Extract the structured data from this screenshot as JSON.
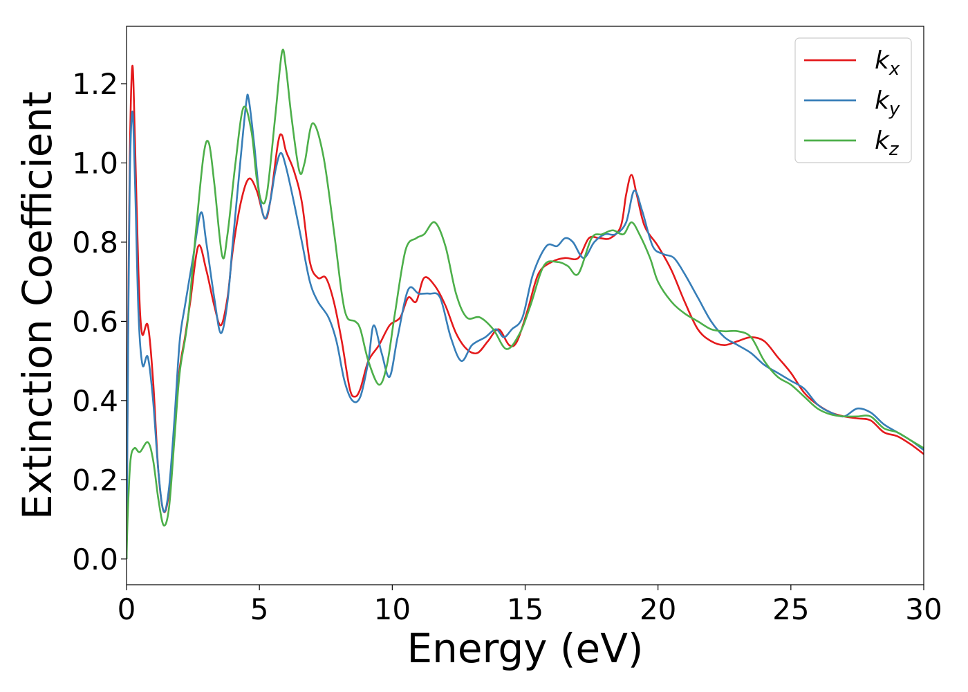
{
  "chart_data": {
    "type": "line",
    "title": "",
    "xlabel": "Energy (eV)",
    "ylabel": "Extinction Coefficient",
    "xlim": [
      0,
      30
    ],
    "ylim": [
      -0.065,
      1.345
    ],
    "xticks": [
      0,
      5,
      10,
      15,
      20,
      25,
      30
    ],
    "xtick_labels": [
      "0",
      "5",
      "10",
      "15",
      "20",
      "25",
      "30"
    ],
    "yticks": [
      0.0,
      0.2,
      0.4,
      0.6,
      0.8,
      1.0,
      1.2
    ],
    "ytick_labels": [
      "0.0",
      "0.2",
      "0.4",
      "0.6",
      "0.8",
      "1.0",
      "1.2"
    ],
    "grid": false,
    "legend_position": "top-right",
    "series": [
      {
        "name": "k",
        "subscript": "x",
        "color": "#e41a1c",
        "points": [
          [
            0,
            0
          ],
          [
            0.05,
            0.5
          ],
          [
            0.12,
            1.0
          ],
          [
            0.22,
            1.245
          ],
          [
            0.32,
            1.05
          ],
          [
            0.45,
            0.72
          ],
          [
            0.58,
            0.57
          ],
          [
            0.8,
            0.59
          ],
          [
            1.0,
            0.45
          ],
          [
            1.2,
            0.22
          ],
          [
            1.4,
            0.12
          ],
          [
            1.6,
            0.17
          ],
          [
            1.8,
            0.33
          ],
          [
            2.0,
            0.48
          ],
          [
            2.2,
            0.56
          ],
          [
            2.4,
            0.65
          ],
          [
            2.7,
            0.79
          ],
          [
            3.0,
            0.73
          ],
          [
            3.3,
            0.64
          ],
          [
            3.55,
            0.59
          ],
          [
            3.8,
            0.66
          ],
          [
            4.0,
            0.78
          ],
          [
            4.3,
            0.9
          ],
          [
            4.6,
            0.96
          ],
          [
            4.9,
            0.93
          ],
          [
            5.2,
            0.86
          ],
          [
            5.4,
            0.9
          ],
          [
            5.7,
            1.05
          ],
          [
            5.85,
            1.07
          ],
          [
            6.0,
            1.03
          ],
          [
            6.3,
            0.98
          ],
          [
            6.6,
            0.9
          ],
          [
            6.9,
            0.75
          ],
          [
            7.2,
            0.71
          ],
          [
            7.5,
            0.71
          ],
          [
            7.8,
            0.65
          ],
          [
            8.1,
            0.55
          ],
          [
            8.4,
            0.43
          ],
          [
            8.6,
            0.41
          ],
          [
            8.8,
            0.43
          ],
          [
            9.1,
            0.5
          ],
          [
            9.5,
            0.54
          ],
          [
            9.9,
            0.59
          ],
          [
            10.3,
            0.61
          ],
          [
            10.6,
            0.66
          ],
          [
            10.9,
            0.65
          ],
          [
            11.2,
            0.71
          ],
          [
            11.6,
            0.69
          ],
          [
            12.0,
            0.64
          ],
          [
            12.4,
            0.57
          ],
          [
            12.8,
            0.53
          ],
          [
            13.2,
            0.52
          ],
          [
            13.6,
            0.55
          ],
          [
            14.0,
            0.58
          ],
          [
            14.4,
            0.54
          ],
          [
            14.7,
            0.55
          ],
          [
            15.1,
            0.63
          ],
          [
            15.5,
            0.72
          ],
          [
            16.0,
            0.75
          ],
          [
            16.5,
            0.76
          ],
          [
            17.0,
            0.76
          ],
          [
            17.4,
            0.81
          ],
          [
            17.8,
            0.81
          ],
          [
            18.2,
            0.81
          ],
          [
            18.6,
            0.84
          ],
          [
            18.8,
            0.92
          ],
          [
            19.0,
            0.97
          ],
          [
            19.2,
            0.92
          ],
          [
            19.5,
            0.84
          ],
          [
            20.0,
            0.79
          ],
          [
            20.5,
            0.73
          ],
          [
            21.0,
            0.65
          ],
          [
            21.5,
            0.58
          ],
          [
            22.0,
            0.55
          ],
          [
            22.5,
            0.54
          ],
          [
            23.0,
            0.55
          ],
          [
            23.5,
            0.56
          ],
          [
            24.0,
            0.55
          ],
          [
            24.5,
            0.51
          ],
          [
            25.0,
            0.47
          ],
          [
            25.5,
            0.42
          ],
          [
            26.0,
            0.39
          ],
          [
            26.5,
            0.37
          ],
          [
            27.0,
            0.36
          ],
          [
            27.5,
            0.355
          ],
          [
            28.0,
            0.35
          ],
          [
            28.5,
            0.32
          ],
          [
            29.0,
            0.31
          ],
          [
            29.5,
            0.29
          ],
          [
            30.0,
            0.265
          ]
        ]
      },
      {
        "name": "k",
        "subscript": "y",
        "color": "#377eb8",
        "points": [
          [
            0,
            0
          ],
          [
            0.05,
            0.45
          ],
          [
            0.12,
            0.95
          ],
          [
            0.22,
            1.13
          ],
          [
            0.32,
            0.95
          ],
          [
            0.45,
            0.62
          ],
          [
            0.6,
            0.49
          ],
          [
            0.8,
            0.51
          ],
          [
            1.0,
            0.4
          ],
          [
            1.2,
            0.22
          ],
          [
            1.4,
            0.12
          ],
          [
            1.6,
            0.18
          ],
          [
            1.8,
            0.35
          ],
          [
            2.0,
            0.55
          ],
          [
            2.2,
            0.64
          ],
          [
            2.5,
            0.76
          ],
          [
            2.8,
            0.875
          ],
          [
            3.0,
            0.8
          ],
          [
            3.3,
            0.66
          ],
          [
            3.55,
            0.57
          ],
          [
            3.8,
            0.65
          ],
          [
            4.0,
            0.8
          ],
          [
            4.25,
            0.98
          ],
          [
            4.5,
            1.15
          ],
          [
            4.6,
            1.16
          ],
          [
            4.8,
            1.05
          ],
          [
            5.0,
            0.92
          ],
          [
            5.2,
            0.86
          ],
          [
            5.4,
            0.9
          ],
          [
            5.6,
            0.98
          ],
          [
            5.8,
            1.025
          ],
          [
            6.0,
            0.99
          ],
          [
            6.3,
            0.9
          ],
          [
            6.6,
            0.8
          ],
          [
            6.9,
            0.7
          ],
          [
            7.2,
            0.65
          ],
          [
            7.6,
            0.61
          ],
          [
            7.9,
            0.55
          ],
          [
            8.2,
            0.45
          ],
          [
            8.5,
            0.4
          ],
          [
            8.8,
            0.41
          ],
          [
            9.1,
            0.5
          ],
          [
            9.3,
            0.59
          ],
          [
            9.6,
            0.52
          ],
          [
            9.9,
            0.46
          ],
          [
            10.2,
            0.56
          ],
          [
            10.6,
            0.68
          ],
          [
            11.0,
            0.67
          ],
          [
            11.4,
            0.67
          ],
          [
            11.8,
            0.66
          ],
          [
            12.2,
            0.56
          ],
          [
            12.6,
            0.5
          ],
          [
            13.0,
            0.54
          ],
          [
            13.5,
            0.56
          ],
          [
            13.9,
            0.58
          ],
          [
            14.2,
            0.56
          ],
          [
            14.5,
            0.58
          ],
          [
            14.9,
            0.61
          ],
          [
            15.3,
            0.72
          ],
          [
            15.8,
            0.79
          ],
          [
            16.2,
            0.79
          ],
          [
            16.5,
            0.81
          ],
          [
            16.8,
            0.8
          ],
          [
            17.2,
            0.76
          ],
          [
            17.6,
            0.8
          ],
          [
            18.0,
            0.82
          ],
          [
            18.4,
            0.82
          ],
          [
            18.8,
            0.85
          ],
          [
            19.1,
            0.93
          ],
          [
            19.4,
            0.88
          ],
          [
            19.8,
            0.79
          ],
          [
            20.2,
            0.77
          ],
          [
            20.6,
            0.76
          ],
          [
            21.0,
            0.72
          ],
          [
            21.5,
            0.66
          ],
          [
            22.0,
            0.6
          ],
          [
            22.5,
            0.56
          ],
          [
            23.0,
            0.54
          ],
          [
            23.5,
            0.52
          ],
          [
            24.0,
            0.49
          ],
          [
            24.5,
            0.47
          ],
          [
            25.0,
            0.45
          ],
          [
            25.5,
            0.43
          ],
          [
            26.0,
            0.39
          ],
          [
            26.5,
            0.37
          ],
          [
            27.0,
            0.36
          ],
          [
            27.5,
            0.38
          ],
          [
            28.0,
            0.37
          ],
          [
            28.5,
            0.34
          ],
          [
            29.0,
            0.32
          ],
          [
            29.5,
            0.3
          ],
          [
            30.0,
            0.275
          ]
        ]
      },
      {
        "name": "k",
        "subscript": "z",
        "color": "#4daf4a",
        "points": [
          [
            0,
            0
          ],
          [
            0.05,
            0.12
          ],
          [
            0.15,
            0.25
          ],
          [
            0.3,
            0.28
          ],
          [
            0.5,
            0.27
          ],
          [
            0.8,
            0.295
          ],
          [
            1.0,
            0.25
          ],
          [
            1.2,
            0.15
          ],
          [
            1.4,
            0.085
          ],
          [
            1.6,
            0.13
          ],
          [
            1.8,
            0.3
          ],
          [
            2.0,
            0.47
          ],
          [
            2.3,
            0.6
          ],
          [
            2.6,
            0.82
          ],
          [
            2.9,
            1.02
          ],
          [
            3.1,
            1.05
          ],
          [
            3.3,
            0.95
          ],
          [
            3.6,
            0.765
          ],
          [
            3.8,
            0.82
          ],
          [
            4.1,
            1.0
          ],
          [
            4.4,
            1.14
          ],
          [
            4.7,
            1.08
          ],
          [
            4.9,
            0.96
          ],
          [
            5.1,
            0.9
          ],
          [
            5.3,
            0.93
          ],
          [
            5.6,
            1.12
          ],
          [
            5.85,
            1.28
          ],
          [
            6.0,
            1.24
          ],
          [
            6.2,
            1.12
          ],
          [
            6.5,
            0.98
          ],
          [
            6.7,
            1.0
          ],
          [
            7.0,
            1.1
          ],
          [
            7.4,
            1.02
          ],
          [
            7.8,
            0.83
          ],
          [
            8.1,
            0.67
          ],
          [
            8.3,
            0.61
          ],
          [
            8.6,
            0.6
          ],
          [
            8.8,
            0.58
          ],
          [
            9.1,
            0.5
          ],
          [
            9.5,
            0.44
          ],
          [
            9.8,
            0.49
          ],
          [
            10.1,
            0.62
          ],
          [
            10.5,
            0.78
          ],
          [
            10.9,
            0.81
          ],
          [
            11.2,
            0.82
          ],
          [
            11.6,
            0.85
          ],
          [
            12.0,
            0.79
          ],
          [
            12.4,
            0.67
          ],
          [
            12.8,
            0.61
          ],
          [
            13.3,
            0.61
          ],
          [
            13.8,
            0.58
          ],
          [
            14.3,
            0.53
          ],
          [
            14.8,
            0.57
          ],
          [
            15.2,
            0.64
          ],
          [
            15.7,
            0.74
          ],
          [
            16.2,
            0.75
          ],
          [
            16.6,
            0.74
          ],
          [
            17.0,
            0.72
          ],
          [
            17.5,
            0.81
          ],
          [
            17.9,
            0.82
          ],
          [
            18.3,
            0.83
          ],
          [
            18.7,
            0.82
          ],
          [
            19.0,
            0.85
          ],
          [
            19.3,
            0.82
          ],
          [
            19.7,
            0.76
          ],
          [
            20.0,
            0.7
          ],
          [
            20.5,
            0.65
          ],
          [
            21.0,
            0.62
          ],
          [
            21.5,
            0.6
          ],
          [
            22.0,
            0.58
          ],
          [
            22.5,
            0.575
          ],
          [
            23.0,
            0.575
          ],
          [
            23.5,
            0.56
          ],
          [
            24.0,
            0.5
          ],
          [
            24.5,
            0.46
          ],
          [
            25.0,
            0.44
          ],
          [
            25.5,
            0.41
          ],
          [
            26.0,
            0.38
          ],
          [
            26.5,
            0.365
          ],
          [
            27.0,
            0.36
          ],
          [
            27.5,
            0.36
          ],
          [
            28.0,
            0.36
          ],
          [
            28.5,
            0.33
          ],
          [
            29.0,
            0.32
          ],
          [
            29.5,
            0.3
          ],
          [
            30.0,
            0.28
          ]
        ]
      }
    ]
  }
}
